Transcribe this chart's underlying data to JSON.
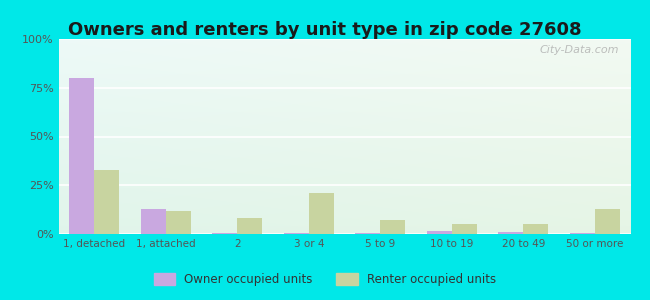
{
  "title": "Owners and renters by unit type in zip code 27608",
  "categories": [
    "1, detached",
    "1, attached",
    "2",
    "3 or 4",
    "5 to 9",
    "10 to 19",
    "20 to 49",
    "50 or more"
  ],
  "owner_values": [
    80,
    13,
    0.5,
    0.5,
    0.5,
    1.5,
    1,
    0.5
  ],
  "renter_values": [
    33,
    12,
    8,
    21,
    7,
    5,
    5,
    13
  ],
  "owner_color": "#c9a8e0",
  "renter_color": "#c8d4a0",
  "background_color": "#00e8e8",
  "ylabel": "",
  "ylim": [
    0,
    100
  ],
  "yticks": [
    0,
    25,
    50,
    75,
    100
  ],
  "ytick_labels": [
    "0%",
    "25%",
    "50%",
    "75%",
    "100%"
  ],
  "legend_owner": "Owner occupied units",
  "legend_renter": "Renter occupied units",
  "title_fontsize": 13,
  "watermark": "City-Data.com"
}
